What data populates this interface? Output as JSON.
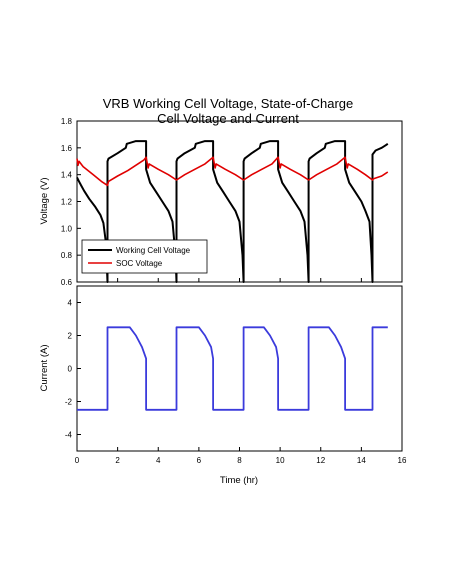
{
  "chart_data": [
    {
      "type": "line",
      "title": "VRB Working Cell Voltage, State-of-Charge",
      "subtitle": "Cell Voltage and Current",
      "xlabel": "",
      "ylabel": "Voltage (V)",
      "xlim": [
        0,
        16
      ],
      "ylim": [
        0.6,
        1.8
      ],
      "x_ticks": [
        "0",
        "2",
        "4",
        "6",
        "8",
        "10",
        "12",
        "14",
        "16"
      ],
      "y_ticks": [
        "0.6",
        "0.8",
        "1.0",
        "1.2",
        "1.4",
        "1.6",
        "1.8"
      ],
      "y_tick_values": [
        0.6,
        0.8,
        1.0,
        1.2,
        1.4,
        1.6,
        1.8
      ],
      "grid": false,
      "legend": "lower-left",
      "series": [
        {
          "name": "Working Cell Voltage",
          "color": "#000000",
          "points": [
            [
              0.0,
              1.38
            ],
            [
              0.1,
              1.35
            ],
            [
              0.2,
              1.32
            ],
            [
              0.35,
              1.28
            ],
            [
              0.6,
              1.22
            ],
            [
              0.9,
              1.16
            ],
            [
              1.15,
              1.1
            ],
            [
              1.3,
              1.04
            ],
            [
              1.42,
              0.9
            ],
            [
              1.5,
              0.6
            ],
            [
              1.5,
              1.5
            ],
            [
              1.55,
              1.52
            ],
            [
              2.0,
              1.56
            ],
            [
              2.4,
              1.6
            ],
            [
              2.45,
              1.63
            ],
            [
              2.9,
              1.65
            ],
            [
              3.4,
              1.65
            ],
            [
              3.4,
              1.44
            ],
            [
              3.6,
              1.34
            ],
            [
              3.9,
              1.27
            ],
            [
              4.2,
              1.2
            ],
            [
              4.5,
              1.13
            ],
            [
              4.7,
              1.05
            ],
            [
              4.85,
              0.8
            ],
            [
              4.9,
              0.6
            ],
            [
              4.9,
              1.5
            ],
            [
              4.95,
              1.52
            ],
            [
              5.3,
              1.56
            ],
            [
              5.8,
              1.6
            ],
            [
              5.85,
              1.63
            ],
            [
              6.3,
              1.65
            ],
            [
              6.7,
              1.65
            ],
            [
              6.7,
              1.44
            ],
            [
              6.9,
              1.34
            ],
            [
              7.2,
              1.27
            ],
            [
              7.5,
              1.2
            ],
            [
              7.8,
              1.13
            ],
            [
              8.0,
              1.05
            ],
            [
              8.15,
              0.8
            ],
            [
              8.2,
              0.6
            ],
            [
              8.2,
              1.5
            ],
            [
              8.25,
              1.52
            ],
            [
              8.6,
              1.56
            ],
            [
              9.0,
              1.6
            ],
            [
              9.05,
              1.63
            ],
            [
              9.5,
              1.65
            ],
            [
              9.9,
              1.65
            ],
            [
              9.9,
              1.44
            ],
            [
              10.1,
              1.34
            ],
            [
              10.4,
              1.27
            ],
            [
              10.7,
              1.2
            ],
            [
              11.0,
              1.13
            ],
            [
              11.2,
              1.05
            ],
            [
              11.35,
              0.8
            ],
            [
              11.4,
              0.6
            ],
            [
              11.4,
              1.5
            ],
            [
              11.45,
              1.52
            ],
            [
              11.8,
              1.56
            ],
            [
              12.2,
              1.6
            ],
            [
              12.25,
              1.63
            ],
            [
              12.7,
              1.65
            ],
            [
              13.2,
              1.65
            ],
            [
              13.2,
              1.44
            ],
            [
              13.4,
              1.34
            ],
            [
              13.7,
              1.27
            ],
            [
              14.0,
              1.2
            ],
            [
              14.2,
              1.13
            ],
            [
              14.4,
              1.05
            ],
            [
              14.5,
              0.8
            ],
            [
              14.55,
              0.6
            ],
            [
              14.55,
              1.55
            ],
            [
              14.7,
              1.58
            ],
            [
              15.0,
              1.6
            ],
            [
              15.2,
              1.62
            ],
            [
              15.3,
              1.63
            ]
          ]
        },
        {
          "name": "SOC Voltage",
          "color": "#e00000",
          "points": [
            [
              0.0,
              1.52
            ],
            [
              0.05,
              1.47
            ],
            [
              0.1,
              1.5
            ],
            [
              0.3,
              1.46
            ],
            [
              0.8,
              1.4
            ],
            [
              1.2,
              1.35
            ],
            [
              1.5,
              1.32
            ],
            [
              1.55,
              1.35
            ],
            [
              2.0,
              1.39
            ],
            [
              2.5,
              1.43
            ],
            [
              3.0,
              1.48
            ],
            [
              3.3,
              1.51
            ],
            [
              3.4,
              1.53
            ],
            [
              3.45,
              1.49
            ],
            [
              3.5,
              1.45
            ],
            [
              3.55,
              1.48
            ],
            [
              4.0,
              1.44
            ],
            [
              4.5,
              1.4
            ],
            [
              4.9,
              1.36
            ],
            [
              5.3,
              1.4
            ],
            [
              5.8,
              1.44
            ],
            [
              6.3,
              1.48
            ],
            [
              6.7,
              1.53
            ],
            [
              6.75,
              1.49
            ],
            [
              6.8,
              1.45
            ],
            [
              6.85,
              1.48
            ],
            [
              7.3,
              1.44
            ],
            [
              7.8,
              1.4
            ],
            [
              8.2,
              1.36
            ],
            [
              8.6,
              1.4
            ],
            [
              9.1,
              1.44
            ],
            [
              9.6,
              1.48
            ],
            [
              9.9,
              1.53
            ],
            [
              9.95,
              1.49
            ],
            [
              10.0,
              1.45
            ],
            [
              10.05,
              1.48
            ],
            [
              10.5,
              1.44
            ],
            [
              11.0,
              1.4
            ],
            [
              11.4,
              1.36
            ],
            [
              11.8,
              1.4
            ],
            [
              12.3,
              1.44
            ],
            [
              12.8,
              1.48
            ],
            [
              13.2,
              1.53
            ],
            [
              13.25,
              1.49
            ],
            [
              13.3,
              1.45
            ],
            [
              13.35,
              1.48
            ],
            [
              13.8,
              1.44
            ],
            [
              14.2,
              1.4
            ],
            [
              14.55,
              1.36
            ],
            [
              14.6,
              1.37
            ],
            [
              14.8,
              1.38
            ],
            [
              15.0,
              1.39
            ],
            [
              15.2,
              1.41
            ],
            [
              15.3,
              1.42
            ]
          ]
        }
      ]
    },
    {
      "type": "line",
      "title": "",
      "xlabel": "Time (hr)",
      "ylabel": "Current (A)",
      "xlim": [
        0,
        16
      ],
      "ylim": [
        -5,
        5
      ],
      "x_ticks": [
        "0",
        "2",
        "4",
        "6",
        "8",
        "10",
        "12",
        "14",
        "16"
      ],
      "x_tick_values": [
        0,
        2,
        4,
        6,
        8,
        10,
        12,
        14,
        16
      ],
      "y_ticks": [
        "-4",
        "-2",
        "0",
        "2",
        "4"
      ],
      "y_tick_values": [
        -4,
        -2,
        0,
        2,
        4
      ],
      "grid": false,
      "series": [
        {
          "name": "",
          "color": "#3b3bdc",
          "points": [
            [
              0.0,
              -2.5
            ],
            [
              1.5,
              -2.5
            ],
            [
              1.5,
              2.5
            ],
            [
              2.6,
              2.5
            ],
            [
              2.9,
              2.0
            ],
            [
              3.2,
              1.3
            ],
            [
              3.4,
              0.6
            ],
            [
              3.4,
              -2.5
            ],
            [
              4.9,
              -2.5
            ],
            [
              4.9,
              2.5
            ],
            [
              6.0,
              2.5
            ],
            [
              6.3,
              2.0
            ],
            [
              6.6,
              1.3
            ],
            [
              6.7,
              0.6
            ],
            [
              6.7,
              -2.5
            ],
            [
              8.2,
              -2.5
            ],
            [
              8.2,
              2.5
            ],
            [
              9.2,
              2.5
            ],
            [
              9.5,
              2.0
            ],
            [
              9.8,
              1.3
            ],
            [
              9.9,
              0.6
            ],
            [
              9.9,
              -2.5
            ],
            [
              11.4,
              -2.5
            ],
            [
              11.4,
              2.5
            ],
            [
              12.4,
              2.5
            ],
            [
              12.7,
              2.0
            ],
            [
              13.0,
              1.3
            ],
            [
              13.2,
              0.6
            ],
            [
              13.2,
              -2.5
            ],
            [
              14.55,
              -2.5
            ],
            [
              14.55,
              2.5
            ],
            [
              15.3,
              2.5
            ]
          ]
        }
      ]
    }
  ]
}
